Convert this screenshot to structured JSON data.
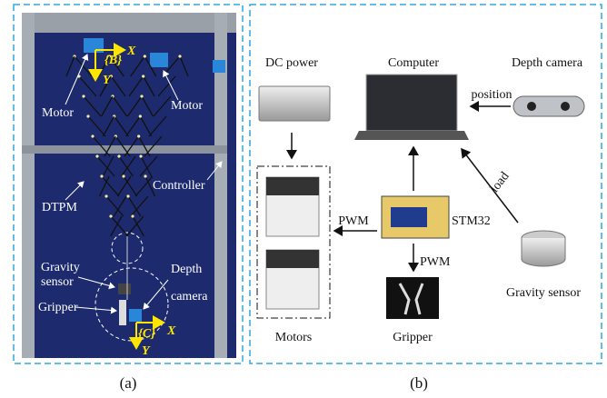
{
  "panel_a": {
    "caption": "(a)",
    "frame_b": "{B}",
    "frame_b_x": "X",
    "frame_b_y": "Y",
    "motor_left": "Motor",
    "motor_right": "Motor",
    "controller": "Controller",
    "dtpm": "DTPM",
    "gravity_sensor": [
      "Gravity",
      "sensor"
    ],
    "depth_camera": [
      "Depth",
      "camera"
    ],
    "gripper": "Gripper",
    "frame_c": "{C}",
    "frame_c_x": "X",
    "frame_c_y": "Y"
  },
  "panel_b": {
    "caption": "(b)",
    "dc_power": "DC power",
    "computer": "Computer",
    "depth_camera": "Depth camera",
    "position": "position",
    "load": "load",
    "pwm_motors": "PWM",
    "stm32": "STM32",
    "pwm_gripper": "PWM",
    "gravity_sensor": "Gravity sensor",
    "motors": "Motors",
    "gripper": "Gripper"
  }
}
